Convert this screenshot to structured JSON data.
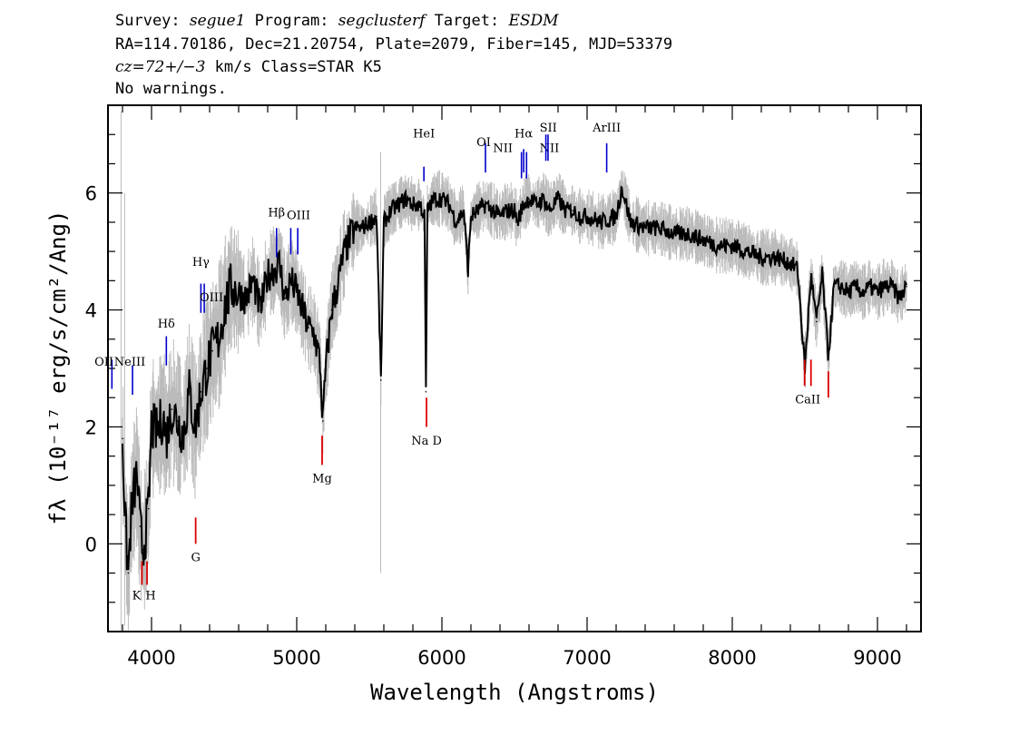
{
  "header": {
    "line1": {
      "survey_label": "Survey: ",
      "survey": "segue1",
      "program_label": " Program: ",
      "program": "segclusterf",
      "target_label": " Target: ",
      "target": "ESDM"
    },
    "line2": "RA=114.70186, Dec=21.20754, Plate=2079, Fiber=145, MJD=53379",
    "line3": {
      "cz": "cz=72+/−3",
      "rest": " km/s Class=STAR K5"
    },
    "line4": "No warnings."
  },
  "chart_data": {
    "type": "line",
    "xlabel": "Wavelength (Angstroms)",
    "ylabel": "fλ (10⁻¹⁷ erg/s/cm²/Ang)",
    "xlim": [
      3700,
      9300
    ],
    "ylim": [
      -1.5,
      7.5
    ],
    "x_ticks": [
      4000,
      5000,
      6000,
      7000,
      8000,
      9000
    ],
    "y_ticks": [
      0,
      2,
      4,
      6
    ],
    "grid": false,
    "colors": {
      "flux": "#000000",
      "noise": "#bbbbbb",
      "emission_line": "#0000cc",
      "absorption_line": "#dd0000"
    },
    "series": [
      {
        "x": [
          3800,
          3820,
          3840,
          3860,
          3880,
          3900,
          3920,
          3940,
          3960,
          3980,
          4000,
          4040,
          4080,
          4100,
          4140,
          4180,
          4220,
          4260,
          4300,
          4340,
          4380,
          4420,
          4460,
          4500,
          4550,
          4600,
          4650,
          4700,
          4750,
          4800,
          4850,
          4880,
          4920,
          4960,
          5000,
          5040,
          5080,
          5120,
          5160,
          5180,
          5200,
          5240,
          5280,
          5320,
          5360,
          5400,
          5450,
          5500,
          5550,
          5580,
          5600,
          5650,
          5700,
          5750,
          5800,
          5850,
          5880,
          5890,
          5900,
          5920,
          5950,
          6000,
          6050,
          6100,
          6150,
          6180,
          6200,
          6250,
          6300,
          6350,
          6400,
          6450,
          6500,
          6520,
          6560,
          6600,
          6650,
          6700,
          6740,
          6800,
          6850,
          6900,
          6950,
          7000,
          7100,
          7200,
          7240,
          7300,
          7400,
          7500,
          7600,
          7700,
          7800,
          7900,
          8000,
          8100,
          8200,
          8300,
          8400,
          8450,
          8500,
          8542,
          8580,
          8620,
          8662,
          8700,
          8750,
          8800,
          8850,
          8900,
          8950,
          9000,
          9050,
          9100,
          9150,
          9200
        ],
        "y": [
          1.8,
          0.3,
          -0.5,
          0.5,
          0.9,
          1.2,
          0.3,
          -0.1,
          0.2,
          0.6,
          2.0,
          1.9,
          2.2,
          1.8,
          2.3,
          2.1,
          1.9,
          2.6,
          2.0,
          2.6,
          3.0,
          3.3,
          3.5,
          4.0,
          4.4,
          4.3,
          4.2,
          4.5,
          4.0,
          4.6,
          4.7,
          4.8,
          4.2,
          4.5,
          4.3,
          4.0,
          3.7,
          3.6,
          3.1,
          2.1,
          3.0,
          4.0,
          4.4,
          4.9,
          5.2,
          5.4,
          5.4,
          5.5,
          5.6,
          2.8,
          5.5,
          5.7,
          5.8,
          5.9,
          5.8,
          5.8,
          5.6,
          2.6,
          5.7,
          5.8,
          5.9,
          5.9,
          5.8,
          5.5,
          5.7,
          4.7,
          5.6,
          5.7,
          5.8,
          5.7,
          5.6,
          5.7,
          5.7,
          5.5,
          5.8,
          5.9,
          5.8,
          5.9,
          5.7,
          5.9,
          5.7,
          5.7,
          5.6,
          5.6,
          5.5,
          5.6,
          6.1,
          5.5,
          5.4,
          5.4,
          5.3,
          5.3,
          5.2,
          5.1,
          5.1,
          5.0,
          4.9,
          4.9,
          4.8,
          4.7,
          3.0,
          4.6,
          3.8,
          4.6,
          3.2,
          4.4,
          4.4,
          4.3,
          4.4,
          4.3,
          4.4,
          4.3,
          4.4,
          4.4,
          4.2,
          4.4
        ]
      }
    ],
    "emission_lines": [
      {
        "label": "OII",
        "x": 3727
      },
      {
        "label": "NeIII",
        "x": 3869
      },
      {
        "label": "Hδ",
        "x": 4102
      },
      {
        "label": "Hγ",
        "x": 4340
      },
      {
        "label": "OIII",
        "x": 4363
      },
      {
        "label": "Hβ",
        "x": 4861
      },
      {
        "label": "OIII",
        "x": 4959
      },
      {
        "label": "OIII",
        "x": 5007
      },
      {
        "label": "HeI",
        "x": 5876
      },
      {
        "label": "OI",
        "x": 6300
      },
      {
        "label": "NII",
        "x": 6548
      },
      {
        "label": "Hα",
        "x": 6563
      },
      {
        "label": "NII",
        "x": 6583
      },
      {
        "label": "SII",
        "x": 6716
      },
      {
        "label": "SII",
        "x": 6731
      },
      {
        "label": "ArIII",
        "x": 7135
      }
    ],
    "absorption_lines": [
      {
        "label": "K",
        "x": 3934
      },
      {
        "label": "H",
        "x": 3969
      },
      {
        "label": "G",
        "x": 4304
      },
      {
        "label": "Mg",
        "x": 5175
      },
      {
        "label": "Na D",
        "x": 5894
      },
      {
        "label": "CaII",
        "x": 8498
      },
      {
        "label": "CaII",
        "x": 8542
      },
      {
        "label": "CaII",
        "x": 8662
      }
    ]
  }
}
